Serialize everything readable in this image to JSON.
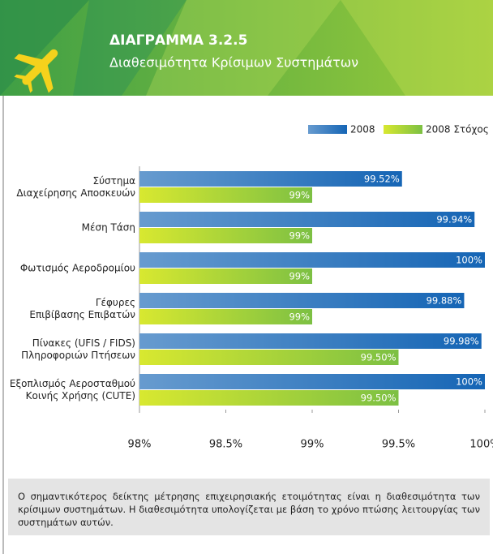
{
  "header": {
    "title": "ΔΙΑΓΡΑΜΜΑ 3.2.5",
    "subtitle": "Διαθεσιμότητα Κρίσιμων Συστημάτων"
  },
  "chart_data": {
    "type": "bar",
    "orientation": "horizontal",
    "categories": [
      "Σύστημα\nΔιαχείρησης Αποσκευών",
      "Μέση Τάση",
      "Φωτισμός Αεροδρομίου",
      "Γέφυρες\nΕπιβίβασης Επιβατών",
      "Πίνακες (UFIS / FIDS)\nΠληροφοριών Πτήσεων",
      "Εξοπλισμός Αεροσταθμού\nΚοινής Χρήσης (CUTE)"
    ],
    "series": [
      {
        "name": "2008",
        "color": "#1565b5",
        "values": [
          99.52,
          99.94,
          100,
          99.88,
          99.98,
          100
        ],
        "value_labels": [
          "99.52%",
          "99.94%",
          "100%",
          "99.88%",
          "99.98%",
          "100%"
        ]
      },
      {
        "name": "2008 Στόχος",
        "color": "#7cc043",
        "values": [
          99,
          99,
          99,
          99,
          99.5,
          99.5
        ],
        "value_labels": [
          "99%",
          "99%",
          "99%",
          "99%",
          "99.50%",
          "99.50%"
        ]
      }
    ],
    "xlim": [
      98,
      100
    ],
    "xticks": [
      {
        "value": 98,
        "label": "98%"
      },
      {
        "value": 98.5,
        "label": "98.5%"
      },
      {
        "value": 99,
        "label": "99%"
      },
      {
        "value": 99.5,
        "label": "99.5%"
      },
      {
        "value": 100,
        "label": "100%"
      }
    ],
    "legend": "top-right"
  },
  "note": "Ο σημαντικότερος δείκτης μέτρησης επιχειρησιακής ετοιμότητας είναι η διαθεσιμότητα των κρίσιμων συστημάτων. Η διαθεσιμότητα υπολογίζεται με βάση το χρόνο πτώσης λειτουργίας των συστημάτων αυτών."
}
